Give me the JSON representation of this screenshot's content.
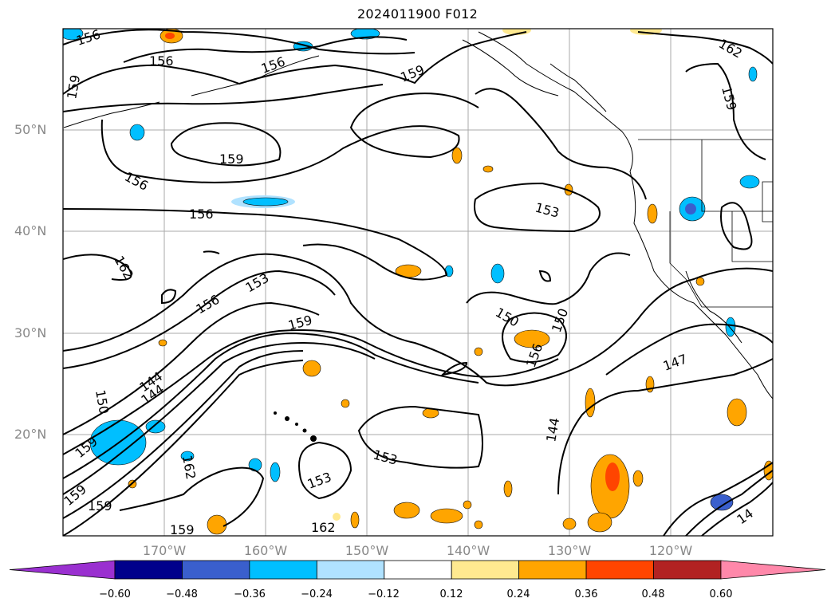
{
  "title": "2024011900 F012",
  "map": {
    "lat_labels": [
      "50°N",
      "40°N",
      "30°N",
      "20°N"
    ],
    "lon_labels": [
      "170°W",
      "160°W",
      "150°W",
      "140°W",
      "130°W",
      "120°W"
    ],
    "contour_labels": [
      "156",
      "156",
      "156",
      "159",
      "159",
      "162",
      "159",
      "156",
      "159",
      "156",
      "153",
      "162",
      "156",
      "153",
      "159",
      "150",
      "150",
      "156",
      "147",
      "144",
      "144",
      "144",
      "153",
      "153",
      "162",
      "162",
      "159",
      "159",
      "14",
      "159",
      "159",
      "150"
    ]
  },
  "colorbar": {
    "ticks": [
      "−0.60",
      "−0.48",
      "−0.36",
      "−0.24",
      "−0.12",
      "0.12",
      "0.24",
      "0.36",
      "0.48",
      "0.60"
    ],
    "colors": [
      "#9a30d0",
      "#00008b",
      "#3a5fcd",
      "#00bfff",
      "#b0e2ff",
      "#ffffff",
      "#ffe990",
      "#ffa500",
      "#ff4500",
      "#b22222",
      "#ff88aa"
    ]
  }
}
